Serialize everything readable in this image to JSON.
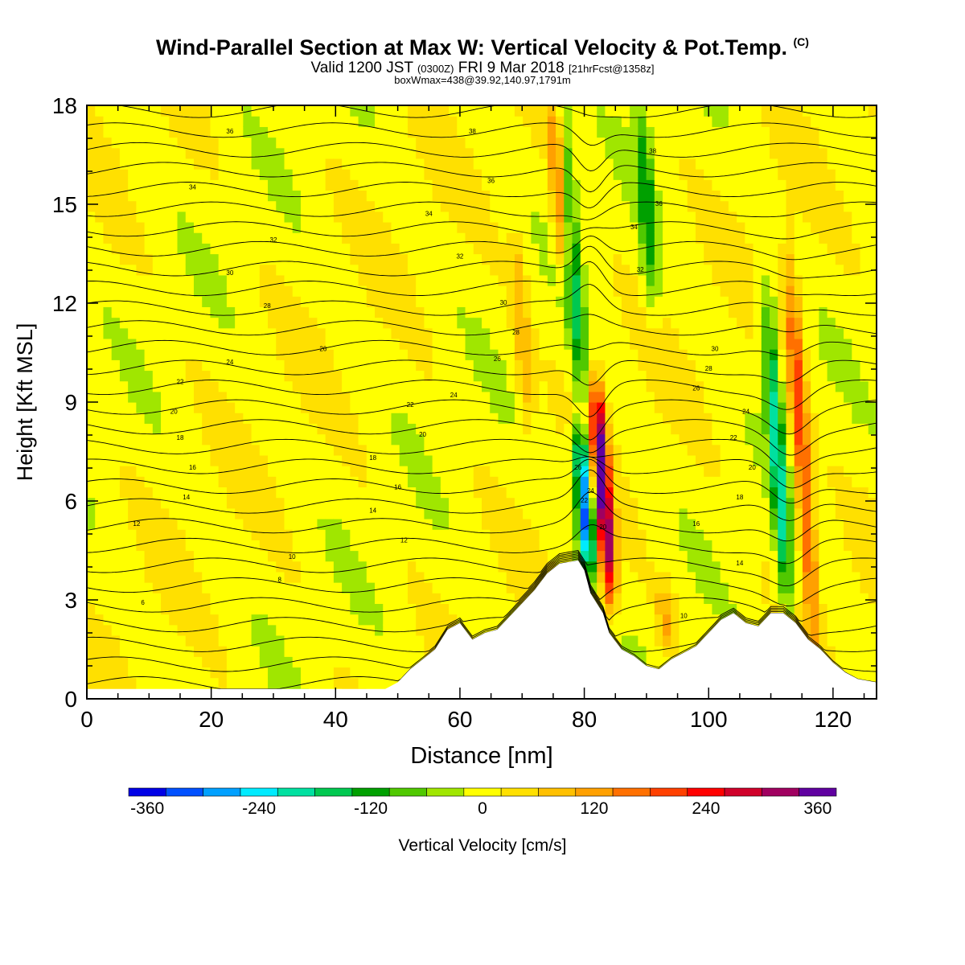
{
  "titles": {
    "main": "Wind-Parallel Section at Max W: Vertical Velocity & Pot.Temp.",
    "main_units": "(C)",
    "valid_prefix": "Valid 1200 JST",
    "valid_zulu": "(0300Z)",
    "valid_date": "FRI 9 Mar 2018",
    "forecast": "[21hrFcst@1358z]",
    "boxmax": "boxWmax=438@39.92,140.97,1791m"
  },
  "chart_data": {
    "type": "heatmap",
    "xlabel": "Distance [nm]",
    "ylabel": "Height [Kft MSL]",
    "xlim": [
      0,
      127
    ],
    "ylim": [
      0,
      18
    ],
    "x_ticks": [
      0,
      20,
      40,
      60,
      80,
      100,
      120
    ],
    "y_ticks": [
      0,
      3,
      6,
      9,
      12,
      15,
      18
    ],
    "colorbar": {
      "label": "Vertical Velocity [cm/s]",
      "min": -380,
      "max": 380,
      "ticks": [
        -360,
        -240,
        -120,
        0,
        120,
        240,
        360
      ],
      "colors": [
        "#0000e6",
        "#0050ff",
        "#00a0ff",
        "#00ebff",
        "#00e0a0",
        "#00c850",
        "#00a000",
        "#50c800",
        "#a0e600",
        "#ffff00",
        "#ffe000",
        "#ffc000",
        "#ffa000",
        "#ff7000",
        "#ff4000",
        "#ff0000",
        "#d0002a",
        "#a00060",
        "#6000a0"
      ]
    },
    "terrain_kft": [
      [
        0,
        0.3
      ],
      [
        48,
        0.3
      ],
      [
        50,
        0.5
      ],
      [
        52,
        0.9
      ],
      [
        56,
        1.5
      ],
      [
        58,
        2.1
      ],
      [
        60,
        2.3
      ],
      [
        62,
        1.8
      ],
      [
        64,
        2.0
      ],
      [
        66,
        2.1
      ],
      [
        68,
        2.5
      ],
      [
        70,
        2.9
      ],
      [
        72,
        3.3
      ],
      [
        74,
        3.8
      ],
      [
        76,
        4.1
      ],
      [
        79,
        4.2
      ],
      [
        80,
        3.9
      ],
      [
        81,
        3.2
      ],
      [
        83,
        2.6
      ],
      [
        84,
        2.0
      ],
      [
        86,
        1.5
      ],
      [
        88,
        1.3
      ],
      [
        90,
        1.0
      ],
      [
        92,
        0.9
      ],
      [
        94,
        1.2
      ],
      [
        96,
        1.4
      ],
      [
        98,
        1.6
      ],
      [
        100,
        2.0
      ],
      [
        102,
        2.4
      ],
      [
        104,
        2.6
      ],
      [
        106,
        2.3
      ],
      [
        108,
        2.2
      ],
      [
        110,
        2.6
      ],
      [
        112,
        2.6
      ],
      [
        114,
        2.3
      ],
      [
        116,
        1.8
      ],
      [
        118,
        1.5
      ],
      [
        120,
        1.1
      ],
      [
        122,
        0.8
      ],
      [
        124,
        0.6
      ],
      [
        127,
        0.5
      ]
    ],
    "vertical_velocity_features": [
      {
        "x": 83,
        "zlo": 3,
        "zhi": 9.5,
        "w": 360
      },
      {
        "x": 80,
        "zlo": 4,
        "zhi": 8,
        "w": -320
      },
      {
        "x": 78,
        "zlo": 9,
        "zhi": 18,
        "w": -150
      },
      {
        "x": 76,
        "zlo": 13,
        "zhi": 18,
        "w": 160
      },
      {
        "x": 115,
        "zlo": 2,
        "zhi": 13,
        "w": 200
      },
      {
        "x": 111,
        "zlo": 3,
        "zhi": 12,
        "w": -200
      },
      {
        "x": 90,
        "zlo": 12,
        "zhi": 18,
        "w": -120
      },
      {
        "x": 70,
        "zlo": 8,
        "zhi": 14,
        "w": 80
      },
      {
        "x": 93,
        "zlo": 1.5,
        "zhi": 3.5,
        "w": 90
      }
    ],
    "theta_contour_labels": [
      {
        "label": "36",
        "x": 23,
        "z": 17.2
      },
      {
        "label": "34",
        "x": 17,
        "z": 15.5
      },
      {
        "label": "32",
        "x": 30,
        "z": 13.9
      },
      {
        "label": "30",
        "x": 23,
        "z": 12.9
      },
      {
        "label": "28",
        "x": 29,
        "z": 11.9
      },
      {
        "label": "26",
        "x": 38,
        "z": 10.6
      },
      {
        "label": "24",
        "x": 23,
        "z": 10.2
      },
      {
        "label": "22",
        "x": 15,
        "z": 9.6
      },
      {
        "label": "20",
        "x": 14,
        "z": 8.7
      },
      {
        "label": "18",
        "x": 15,
        "z": 7.9
      },
      {
        "label": "16",
        "x": 17,
        "z": 7.0
      },
      {
        "label": "14",
        "x": 16,
        "z": 6.1
      },
      {
        "label": "12",
        "x": 8,
        "z": 5.3
      },
      {
        "label": "10",
        "x": 33,
        "z": 4.3
      },
      {
        "label": "8",
        "x": 31,
        "z": 3.6
      },
      {
        "label": "6",
        "x": 9,
        "z": 2.9
      },
      {
        "label": "38",
        "x": 62,
        "z": 17.2
      },
      {
        "label": "36",
        "x": 65,
        "z": 15.7
      },
      {
        "label": "34",
        "x": 55,
        "z": 14.7
      },
      {
        "label": "32",
        "x": 60,
        "z": 13.4
      },
      {
        "label": "30",
        "x": 67,
        "z": 12.0
      },
      {
        "label": "28",
        "x": 69,
        "z": 11.1
      },
      {
        "label": "26",
        "x": 66,
        "z": 10.3
      },
      {
        "label": "24",
        "x": 59,
        "z": 9.2
      },
      {
        "label": "22",
        "x": 52,
        "z": 8.9
      },
      {
        "label": "20",
        "x": 54,
        "z": 8.0
      },
      {
        "label": "18",
        "x": 46,
        "z": 7.3
      },
      {
        "label": "16",
        "x": 50,
        "z": 6.4
      },
      {
        "label": "14",
        "x": 46,
        "z": 5.7
      },
      {
        "label": "12",
        "x": 51,
        "z": 4.8
      },
      {
        "label": "38",
        "x": 91,
        "z": 16.6
      },
      {
        "label": "36",
        "x": 92,
        "z": 15.0
      },
      {
        "label": "34",
        "x": 88,
        "z": 14.3
      },
      {
        "label": "32",
        "x": 89,
        "z": 13.0
      },
      {
        "label": "30",
        "x": 101,
        "z": 10.6
      },
      {
        "label": "28",
        "x": 100,
        "z": 10.0
      },
      {
        "label": "26",
        "x": 98,
        "z": 9.4
      },
      {
        "label": "24",
        "x": 106,
        "z": 8.7
      },
      {
        "label": "22",
        "x": 104,
        "z": 7.9
      },
      {
        "label": "20",
        "x": 107,
        "z": 7.0
      },
      {
        "label": "18",
        "x": 105,
        "z": 6.1
      },
      {
        "label": "16",
        "x": 98,
        "z": 5.3
      },
      {
        "label": "14",
        "x": 105,
        "z": 4.1
      },
      {
        "label": "10",
        "x": 96,
        "z": 2.5
      },
      {
        "label": "26",
        "x": 79,
        "z": 7.0
      },
      {
        "label": "24",
        "x": 81,
        "z": 6.3
      },
      {
        "label": "22",
        "x": 80,
        "z": 6.0
      },
      {
        "label": "20",
        "x": 83,
        "z": 5.2
      }
    ]
  }
}
